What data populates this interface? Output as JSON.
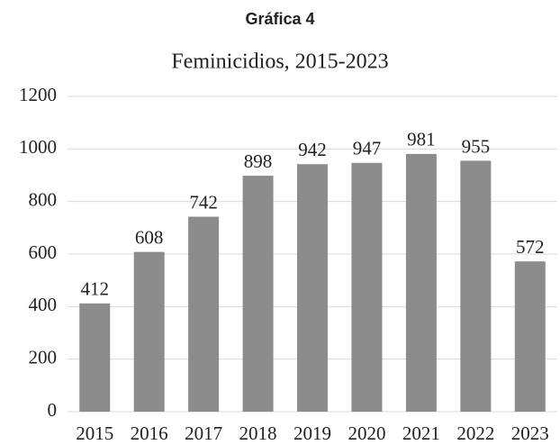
{
  "chart_data": {
    "type": "bar",
    "heading": "Gráfica 4",
    "title": "Feminicidios, 2015-2023",
    "categories": [
      "2015",
      "2016",
      "2017",
      "2018",
      "2019",
      "2020",
      "2021",
      "2022",
      "2023"
    ],
    "values": [
      412,
      608,
      742,
      898,
      942,
      947,
      981,
      955,
      572
    ],
    "color": "#8c8c8c",
    "ylim": [
      0,
      1200
    ],
    "yticks": [
      0,
      200,
      400,
      600,
      800,
      1000,
      1200
    ],
    "grid": true,
    "data_labels": true
  }
}
